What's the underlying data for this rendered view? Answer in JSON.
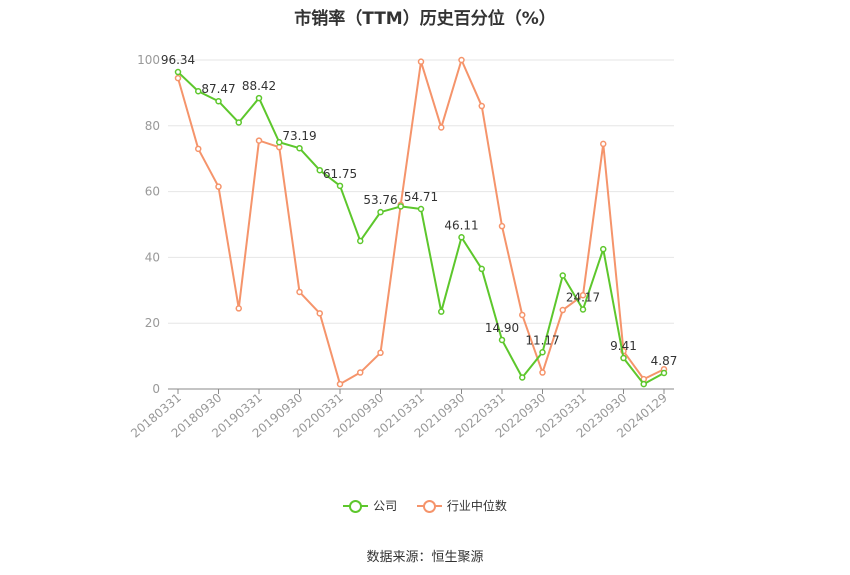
{
  "chart_data": {
    "type": "line",
    "title": "市销率（TTM）历史百分位（%）",
    "source": "数据来源：恒生聚源",
    "ylim": [
      0,
      100
    ],
    "y_ticks": [
      0,
      20,
      40,
      60,
      80,
      100
    ],
    "x": [
      "20180331",
      "20180630",
      "20180930",
      "20181231",
      "20190331",
      "20190630",
      "20190930",
      "20191231",
      "20200331",
      "20200630",
      "20200930",
      "20201231",
      "20210331",
      "20210630",
      "20210930",
      "20211231",
      "20220331",
      "20220630",
      "20220930",
      "20221231",
      "20230331",
      "20230630",
      "20230930",
      "20231231",
      "20240129"
    ],
    "x_tick_labels": [
      "20180331",
      "20180930",
      "20190331",
      "20190930",
      "20200331",
      "20200930",
      "20210331",
      "20210930",
      "20220331",
      "20220930",
      "20230331",
      "20230930",
      "20240129"
    ],
    "series": [
      {
        "name": "公司",
        "color": "#5dc72c",
        "values": [
          96.34,
          90.5,
          87.47,
          81.0,
          88.42,
          75.0,
          73.19,
          66.5,
          61.75,
          45.0,
          53.76,
          55.5,
          54.71,
          23.5,
          46.11,
          36.5,
          14.9,
          3.5,
          11.17,
          34.5,
          24.17,
          42.5,
          9.41,
          1.5,
          4.87
        ],
        "labels": {
          "0": "96.34",
          "2": "87.47",
          "4": "88.42",
          "6": "73.19",
          "8": "61.75",
          "10": "53.76",
          "12": "54.71",
          "14": "46.11",
          "16": "14.90",
          "18": "11.17",
          "20": "24.17",
          "22": "9.41",
          "24": "4.87"
        }
      },
      {
        "name": "行业中位数",
        "color": "#f5946b",
        "values": [
          94.5,
          73.0,
          61.5,
          24.5,
          75.5,
          73.5,
          29.5,
          23.0,
          1.5,
          5.0,
          11.0,
          56.0,
          99.5,
          79.5,
          100.0,
          86.0,
          49.5,
          22.5,
          5.0,
          24.0,
          28.5,
          74.5,
          11.5,
          3.0,
          6.0
        ]
      }
    ],
    "legend_position": "bottom",
    "grid": true
  }
}
